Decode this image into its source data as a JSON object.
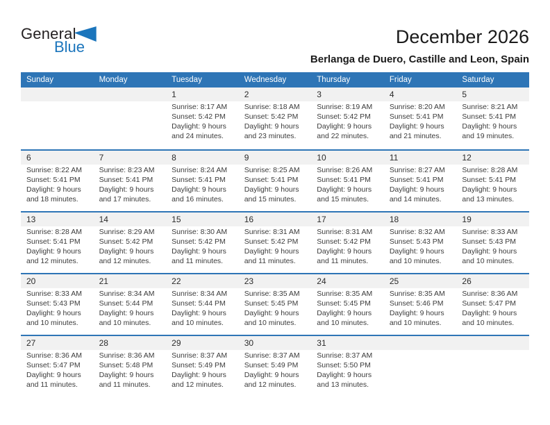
{
  "logo": {
    "text_top": "General",
    "text_bottom": "Blue"
  },
  "page_header": {
    "title": "December 2026",
    "location": "Berlanga de Duero, Castille and Leon, Spain"
  },
  "colors": {
    "header_bar": "#2E75B6",
    "week_divider": "#2E75B6",
    "day_number_strip": "#F1F1F1",
    "logo_blue": "#1B75BC",
    "body_text": "#3B3B3B"
  },
  "calendar": {
    "weekdays": [
      "Sunday",
      "Monday",
      "Tuesday",
      "Wednesday",
      "Thursday",
      "Friday",
      "Saturday"
    ],
    "weeks": [
      [
        {
          "day": ""
        },
        {
          "day": ""
        },
        {
          "day": "1",
          "sunrise": "Sunrise: 8:17 AM",
          "sunset": "Sunset: 5:42 PM",
          "daylight": "Daylight: 9 hours and 24 minutes."
        },
        {
          "day": "2",
          "sunrise": "Sunrise: 8:18 AM",
          "sunset": "Sunset: 5:42 PM",
          "daylight": "Daylight: 9 hours and 23 minutes."
        },
        {
          "day": "3",
          "sunrise": "Sunrise: 8:19 AM",
          "sunset": "Sunset: 5:42 PM",
          "daylight": "Daylight: 9 hours and 22 minutes."
        },
        {
          "day": "4",
          "sunrise": "Sunrise: 8:20 AM",
          "sunset": "Sunset: 5:41 PM",
          "daylight": "Daylight: 9 hours and 21 minutes."
        },
        {
          "day": "5",
          "sunrise": "Sunrise: 8:21 AM",
          "sunset": "Sunset: 5:41 PM",
          "daylight": "Daylight: 9 hours and 19 minutes."
        }
      ],
      [
        {
          "day": "6",
          "sunrise": "Sunrise: 8:22 AM",
          "sunset": "Sunset: 5:41 PM",
          "daylight": "Daylight: 9 hours and 18 minutes."
        },
        {
          "day": "7",
          "sunrise": "Sunrise: 8:23 AM",
          "sunset": "Sunset: 5:41 PM",
          "daylight": "Daylight: 9 hours and 17 minutes."
        },
        {
          "day": "8",
          "sunrise": "Sunrise: 8:24 AM",
          "sunset": "Sunset: 5:41 PM",
          "daylight": "Daylight: 9 hours and 16 minutes."
        },
        {
          "day": "9",
          "sunrise": "Sunrise: 8:25 AM",
          "sunset": "Sunset: 5:41 PM",
          "daylight": "Daylight: 9 hours and 15 minutes."
        },
        {
          "day": "10",
          "sunrise": "Sunrise: 8:26 AM",
          "sunset": "Sunset: 5:41 PM",
          "daylight": "Daylight: 9 hours and 15 minutes."
        },
        {
          "day": "11",
          "sunrise": "Sunrise: 8:27 AM",
          "sunset": "Sunset: 5:41 PM",
          "daylight": "Daylight: 9 hours and 14 minutes."
        },
        {
          "day": "12",
          "sunrise": "Sunrise: 8:28 AM",
          "sunset": "Sunset: 5:41 PM",
          "daylight": "Daylight: 9 hours and 13 minutes."
        }
      ],
      [
        {
          "day": "13",
          "sunrise": "Sunrise: 8:28 AM",
          "sunset": "Sunset: 5:41 PM",
          "daylight": "Daylight: 9 hours and 12 minutes."
        },
        {
          "day": "14",
          "sunrise": "Sunrise: 8:29 AM",
          "sunset": "Sunset: 5:42 PM",
          "daylight": "Daylight: 9 hours and 12 minutes."
        },
        {
          "day": "15",
          "sunrise": "Sunrise: 8:30 AM",
          "sunset": "Sunset: 5:42 PM",
          "daylight": "Daylight: 9 hours and 11 minutes."
        },
        {
          "day": "16",
          "sunrise": "Sunrise: 8:31 AM",
          "sunset": "Sunset: 5:42 PM",
          "daylight": "Daylight: 9 hours and 11 minutes."
        },
        {
          "day": "17",
          "sunrise": "Sunrise: 8:31 AM",
          "sunset": "Sunset: 5:42 PM",
          "daylight": "Daylight: 9 hours and 11 minutes."
        },
        {
          "day": "18",
          "sunrise": "Sunrise: 8:32 AM",
          "sunset": "Sunset: 5:43 PM",
          "daylight": "Daylight: 9 hours and 10 minutes."
        },
        {
          "day": "19",
          "sunrise": "Sunrise: 8:33 AM",
          "sunset": "Sunset: 5:43 PM",
          "daylight": "Daylight: 9 hours and 10 minutes."
        }
      ],
      [
        {
          "day": "20",
          "sunrise": "Sunrise: 8:33 AM",
          "sunset": "Sunset: 5:43 PM",
          "daylight": "Daylight: 9 hours and 10 minutes."
        },
        {
          "day": "21",
          "sunrise": "Sunrise: 8:34 AM",
          "sunset": "Sunset: 5:44 PM",
          "daylight": "Daylight: 9 hours and 10 minutes."
        },
        {
          "day": "22",
          "sunrise": "Sunrise: 8:34 AM",
          "sunset": "Sunset: 5:44 PM",
          "daylight": "Daylight: 9 hours and 10 minutes."
        },
        {
          "day": "23",
          "sunrise": "Sunrise: 8:35 AM",
          "sunset": "Sunset: 5:45 PM",
          "daylight": "Daylight: 9 hours and 10 minutes."
        },
        {
          "day": "24",
          "sunrise": "Sunrise: 8:35 AM",
          "sunset": "Sunset: 5:45 PM",
          "daylight": "Daylight: 9 hours and 10 minutes."
        },
        {
          "day": "25",
          "sunrise": "Sunrise: 8:35 AM",
          "sunset": "Sunset: 5:46 PM",
          "daylight": "Daylight: 9 hours and 10 minutes."
        },
        {
          "day": "26",
          "sunrise": "Sunrise: 8:36 AM",
          "sunset": "Sunset: 5:47 PM",
          "daylight": "Daylight: 9 hours and 10 minutes."
        }
      ],
      [
        {
          "day": "27",
          "sunrise": "Sunrise: 8:36 AM",
          "sunset": "Sunset: 5:47 PM",
          "daylight": "Daylight: 9 hours and 11 minutes."
        },
        {
          "day": "28",
          "sunrise": "Sunrise: 8:36 AM",
          "sunset": "Sunset: 5:48 PM",
          "daylight": "Daylight: 9 hours and 11 minutes."
        },
        {
          "day": "29",
          "sunrise": "Sunrise: 8:37 AM",
          "sunset": "Sunset: 5:49 PM",
          "daylight": "Daylight: 9 hours and 12 minutes."
        },
        {
          "day": "30",
          "sunrise": "Sunrise: 8:37 AM",
          "sunset": "Sunset: 5:49 PM",
          "daylight": "Daylight: 9 hours and 12 minutes."
        },
        {
          "day": "31",
          "sunrise": "Sunrise: 8:37 AM",
          "sunset": "Sunset: 5:50 PM",
          "daylight": "Daylight: 9 hours and 13 minutes."
        },
        {
          "day": ""
        },
        {
          "day": ""
        }
      ]
    ]
  }
}
